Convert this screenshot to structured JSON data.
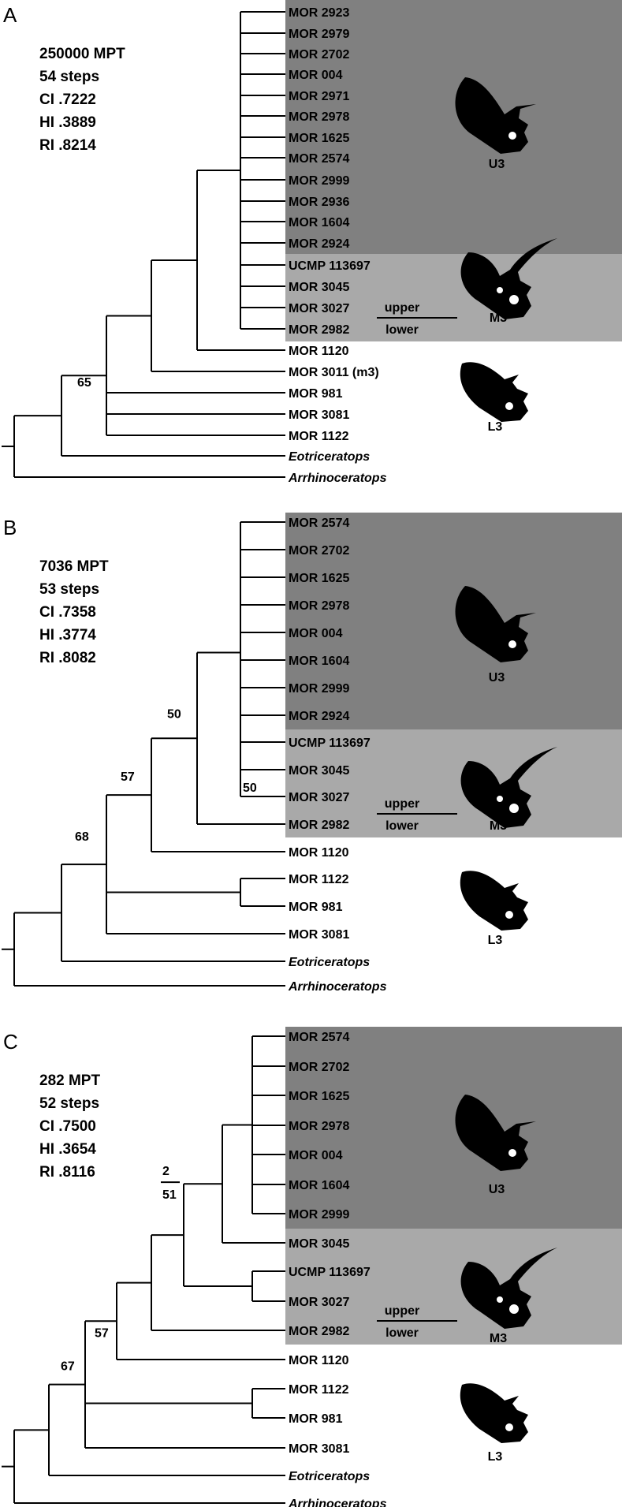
{
  "panels": [
    {
      "letter": "A",
      "stats": [
        "250000 MPT",
        "54 steps",
        "CI .7222",
        "HI .3889",
        "RI .8214"
      ],
      "taxa": [
        "MOR 2923",
        "MOR 2979",
        "MOR 2702",
        "MOR 004",
        "MOR 2971",
        "MOR 2978",
        "MOR 1625",
        "MOR 2574",
        "MOR 2999",
        "MOR 2936",
        "MOR 1604",
        "MOR 2924",
        "UCMP 113697",
        "MOR 3045",
        "MOR 3027",
        "MOR 2982",
        "MOR 1120",
        "MOR 3011  (m3)",
        "MOR 981",
        "MOR 3081",
        "MOR 1122",
        "Eotriceratops",
        "Arrhinoceratops"
      ],
      "support": [
        "65"
      ],
      "zones": [
        "U3",
        "M3",
        "L3"
      ],
      "upper_label": "upper",
      "lower_label": "lower"
    },
    {
      "letter": "B",
      "stats": [
        "7036 MPT",
        "53 steps",
        "CI .7358",
        "HI .3774",
        "RI .8082"
      ],
      "taxa": [
        "MOR 2574",
        "MOR 2702",
        "MOR 1625",
        "MOR 2978",
        "MOR 004",
        "MOR 1604",
        "MOR 2999",
        "MOR 2924",
        "UCMP 113697",
        "MOR 3045",
        "MOR 3027",
        "MOR 2982",
        "MOR 1120",
        "MOR 1122",
        "MOR 981",
        "MOR 3081",
        "Eotriceratops",
        "Arrhinoceratops"
      ],
      "support": [
        "50",
        "50",
        "57",
        "68"
      ],
      "zones": [
        "U3",
        "M3",
        "L3"
      ],
      "upper_label": "upper",
      "lower_label": "lower"
    },
    {
      "letter": "C",
      "stats": [
        "282 MPT",
        "52 steps",
        "CI .7500",
        "HI .3654",
        "RI .8116"
      ],
      "taxa": [
        "MOR 2574",
        "MOR 2702",
        "MOR 1625",
        "MOR 2978",
        "MOR 004",
        "MOR 1604",
        "MOR 2999",
        "MOR 3045",
        "UCMP 113697",
        "MOR 3027",
        "MOR 2982",
        "MOR 1120",
        "MOR 1122",
        "MOR 981",
        "MOR 3081",
        "Eotriceratops",
        "Arrhinoceratops"
      ],
      "support": [
        "2",
        "51",
        "57",
        "67"
      ],
      "zones": [
        "U3",
        "M3",
        "L3"
      ],
      "upper_label": "upper",
      "lower_label": "lower"
    }
  ],
  "italic_taxa": [
    "Eotriceratops",
    "Arrhinoceratops"
  ],
  "colors": {
    "u3_shade": "#808080",
    "m3_shade": "#a9a9a9",
    "line": "#000000",
    "skull": "#000000"
  }
}
